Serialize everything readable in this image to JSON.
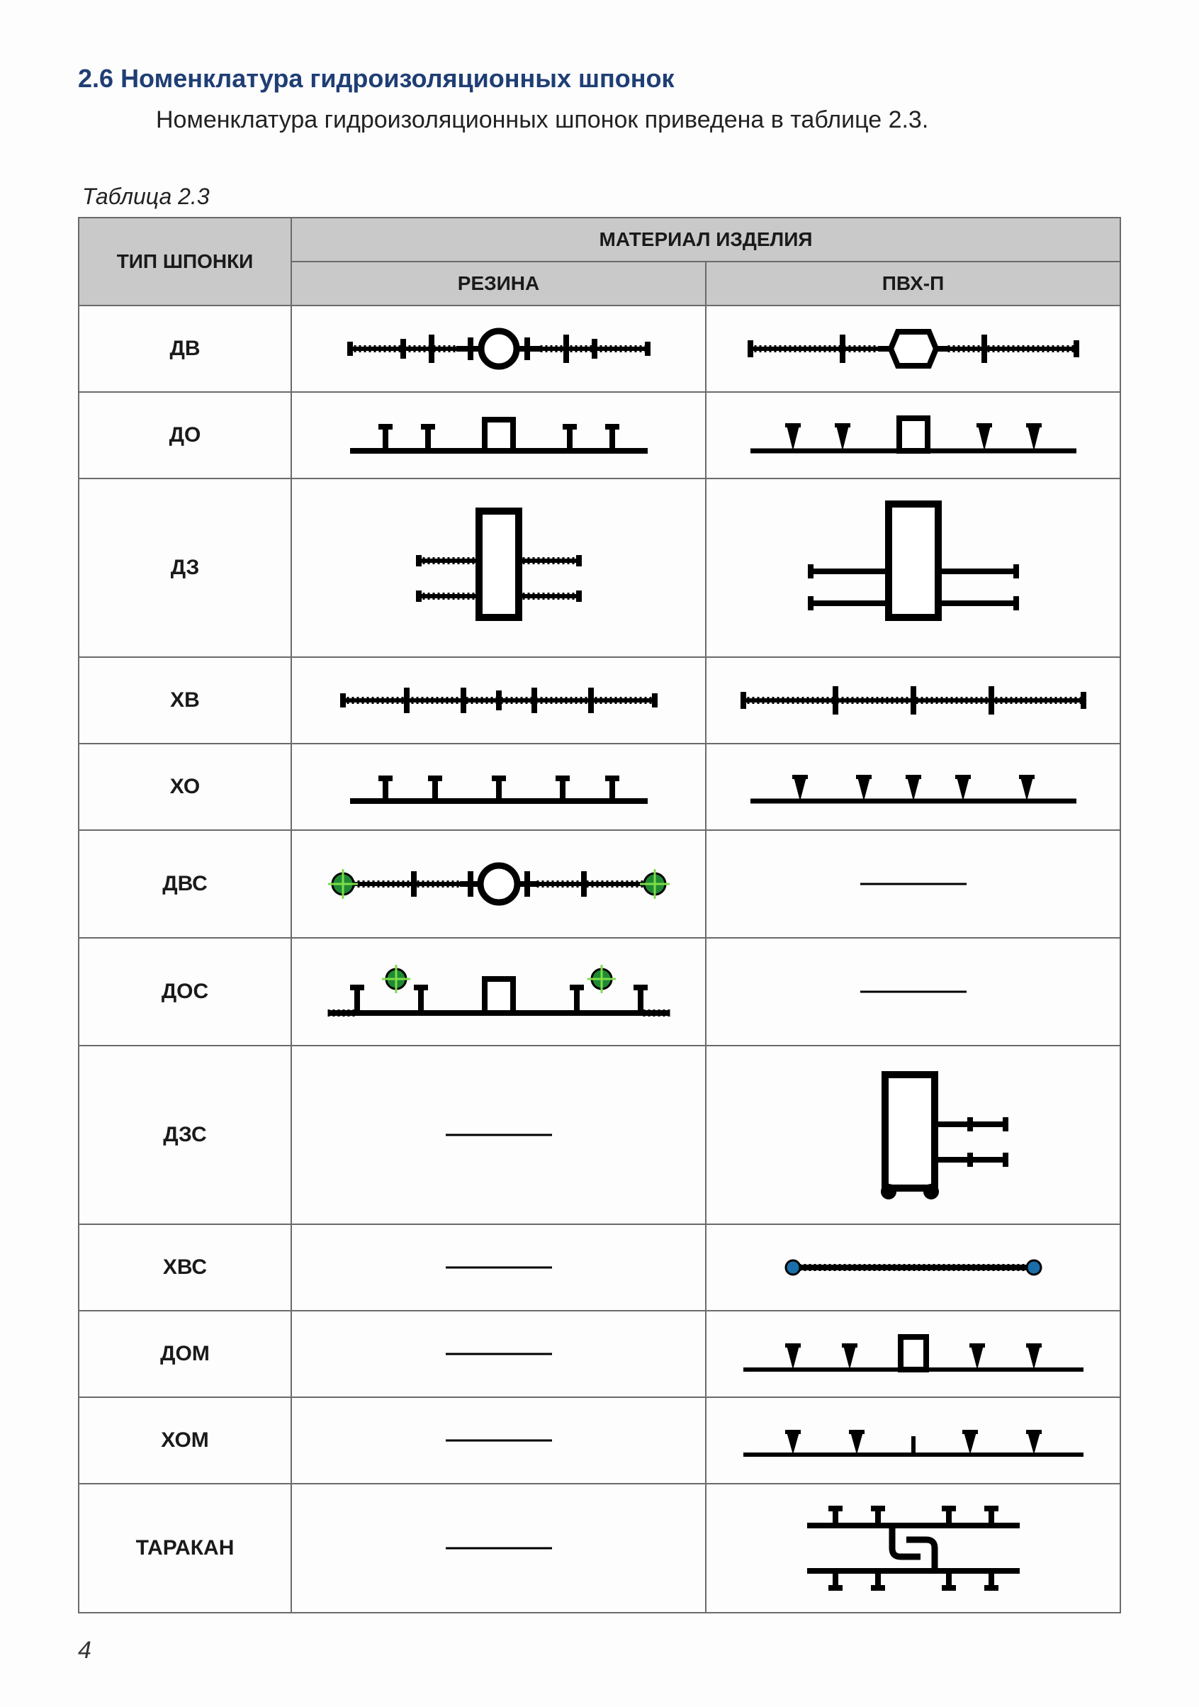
{
  "section": {
    "number": "2.6",
    "title": "Номенклатура гидроизоляционных шпонок",
    "intro": "Номенклатура гидроизоляционных шпонок приведена в таблице 2.3."
  },
  "table": {
    "caption": "Таблица 2.3",
    "header": {
      "type": "ТИП ШПОНКИ",
      "material": "МАТЕРИАЛ ИЗДЕЛИЯ",
      "rubber": "РЕЗИНА",
      "pvc": "ПВХ-П"
    },
    "rows": [
      {
        "key": "dv",
        "label": "ДВ",
        "size": "sm",
        "rubber": "dv_rubber",
        "pvc": "dv_pvc"
      },
      {
        "key": "do",
        "label": "ДО",
        "size": "sm",
        "rubber": "do_rubber",
        "pvc": "do_pvc"
      },
      {
        "key": "dz",
        "label": "ДЗ",
        "size": "lg",
        "rubber": "dz_rubber",
        "pvc": "dz_pvc"
      },
      {
        "key": "xv",
        "label": "ХВ",
        "size": "sm",
        "rubber": "xv_rubber",
        "pvc": "xv_pvc"
      },
      {
        "key": "xo",
        "label": "ХО",
        "size": "sm",
        "rubber": "xo_rubber",
        "pvc": "xo_pvc"
      },
      {
        "key": "dvs",
        "label": "ДВС",
        "size": "md",
        "rubber": "dvs_rubber",
        "pvc": "dash"
      },
      {
        "key": "dos",
        "label": "ДОС",
        "size": "md",
        "rubber": "dos_rubber",
        "pvc": "dash"
      },
      {
        "key": "dzs",
        "label": "ДЗС",
        "size": "lg",
        "rubber": "dash",
        "pvc": "dzs_pvc"
      },
      {
        "key": "xvs",
        "label": "ХВС",
        "size": "sm",
        "rubber": "dash",
        "pvc": "xvs_pvc"
      },
      {
        "key": "dom",
        "label": "ДОМ",
        "size": "sm",
        "rubber": "dash",
        "pvc": "dom_pvc"
      },
      {
        "key": "xom",
        "label": "ХОМ",
        "size": "sm",
        "rubber": "dash",
        "pvc": "xom_pvc"
      },
      {
        "key": "tar",
        "label": "ТАРАКАН",
        "size": "xl",
        "rubber": "dash",
        "pvc": "tarakan_pvc"
      }
    ]
  },
  "style": {
    "header_bg": "#c9c9c9",
    "border_color": "#6b6b6b",
    "heading_color": "#1f3e74",
    "text_color": "#1a1a1a",
    "profile_stroke": "#000000",
    "profile_stroke_w_main": 8,
    "profile_stroke_w_thin": 4,
    "swell_fill": "#1f8a33",
    "swell_cross": "#7fdc4a",
    "swell_blue": "#1a6faa",
    "dash_color": "#000000",
    "dash_len": 150
  },
  "page_number": "4"
}
